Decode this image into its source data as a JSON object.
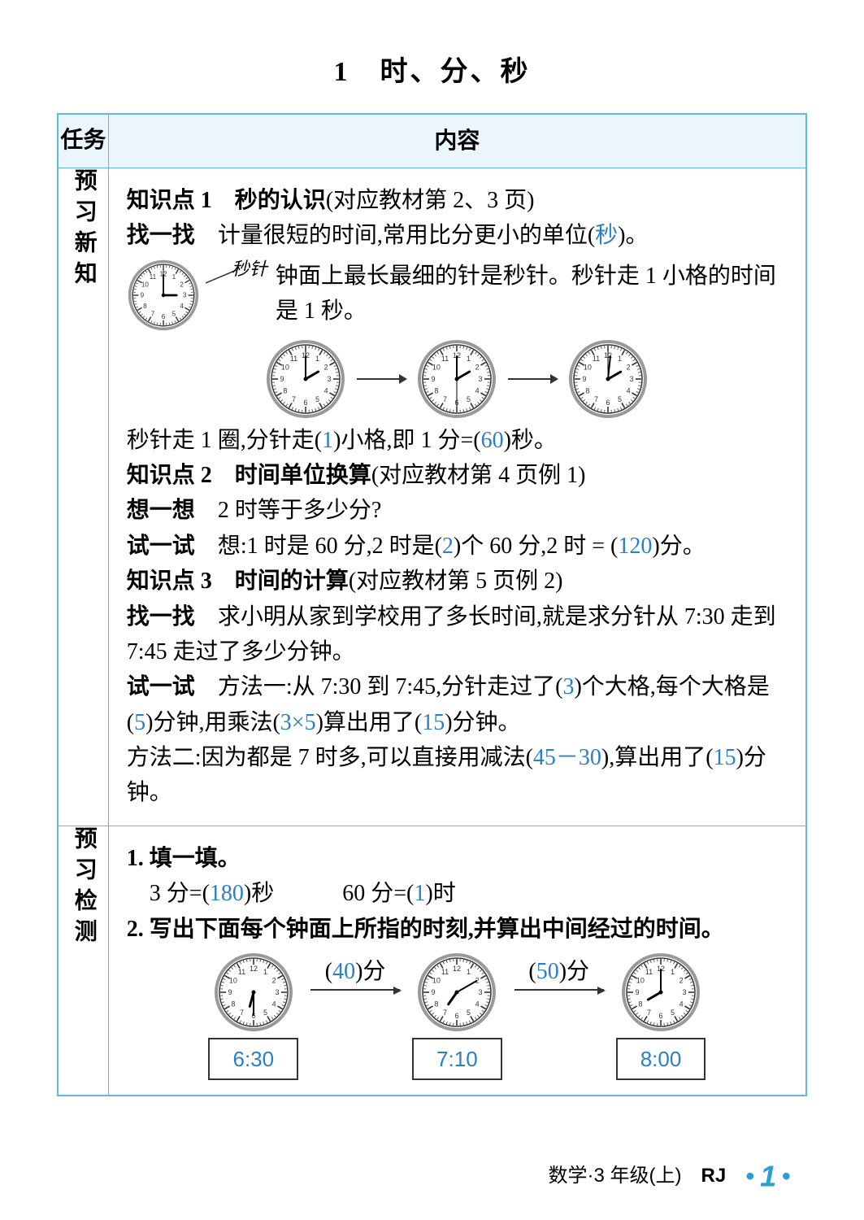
{
  "title": "1　时、分、秒",
  "table": {
    "header_left": "任务",
    "header_right": "内容",
    "section1_label": "预习新知",
    "section2_label": "预习检测"
  },
  "kp1": {
    "heading_bold": "知识点 1　秒的认识",
    "heading_paren": "(对应教材第 2、3 页)",
    "zhao_label": "找一找",
    "zhao_text_a": "　计量很短的时间,常用比分更小的单位(",
    "zhao_ans": "秒",
    "zhao_text_b": ")。",
    "pointer_label": "秒针",
    "clock_desc": "钟面上最长最细的针是秒针。秒针走 1 小格的时间是 1 秒。",
    "line2_a": "秒针走 1 圈,分针走(",
    "line2_ans1": "1",
    "line2_b": ")小格,即 1 分=(",
    "line2_ans2": "60",
    "line2_c": ")秒。",
    "clock_top": {
      "hour": 3,
      "minute": 0,
      "second": 0
    },
    "clock_seq": [
      {
        "hour": 2,
        "minute": 0,
        "second": 0
      },
      {
        "hour": 2,
        "minute": 0,
        "second": 30
      },
      {
        "hour": 2,
        "minute": 1,
        "second": 0
      }
    ]
  },
  "kp2": {
    "heading_bold": "知识点 2　时间单位换算",
    "heading_paren": "(对应教材第 4 页例 1)",
    "xiang_label": "想一想",
    "xiang_text": "　2 时等于多少分?",
    "shi_label": "试一试",
    "shi_a": "　想:1 时是 60 分,2 时是(",
    "shi_ans1": "2",
    "shi_b": ")个 60 分,2 时 = (",
    "shi_ans2": "120",
    "shi_c": ")分。"
  },
  "kp3": {
    "heading_bold": "知识点 3　时间的计算",
    "heading_paren": "(对应教材第 5 页例 2)",
    "zhao_label": "找一找",
    "zhao_text": "　求小明从家到学校用了多长时间,就是求分针从 7:30 走到 7:45 走过了多少分钟。",
    "shi_label": "试一试",
    "m1_a": "　方法一:从 7:30 到 7:45,分针走过了(",
    "m1_ans1": "3",
    "m1_b": ")个大格,每个大格是(",
    "m1_ans2": "5",
    "m1_c": ")分钟,用乘法(",
    "m1_ans3": "3×5",
    "m1_d": ")算出用了(",
    "m1_ans4": "15",
    "m1_e": ")分钟。",
    "m2_a": "方法二:因为都是 7 时多,可以直接用减法(",
    "m2_ans1": "45－30",
    "m2_b": "),算出用了(",
    "m2_ans2": "15",
    "m2_c": ")分钟。"
  },
  "test": {
    "q1_label": "1. 填一填。",
    "q1_a": "　3 分=(",
    "q1_ans1": "180",
    "q1_b": ")秒",
    "q1_gap": "　　　",
    "q1_c": "60 分=(",
    "q1_ans2": "1",
    "q1_d": ")时",
    "q2_label": "2. 写出下面每个钟面上所指的时刻,并算出中间经过的时间。",
    "q2_gap1_a": "(",
    "q2_gap1_ans": "40",
    "q2_gap1_b": ")分",
    "q2_gap2_a": "(",
    "q2_gap2_ans": "50",
    "q2_gap2_b": ")分",
    "q2_times": [
      "6:30",
      "7:10",
      "8:00"
    ],
    "q2_clocks": [
      {
        "hour": 6,
        "minute": 30
      },
      {
        "hour": 7,
        "minute": 10
      },
      {
        "hour": 8,
        "minute": 0
      }
    ]
  },
  "footer": {
    "subject": "数学·3 年级(上)",
    "edition": "RJ",
    "page": "1"
  },
  "colors": {
    "border": "#5fb9e0",
    "header_bg": "#eaf6fb",
    "answer": "#2a7fc7",
    "footer_accent": "#2a9fd6"
  }
}
